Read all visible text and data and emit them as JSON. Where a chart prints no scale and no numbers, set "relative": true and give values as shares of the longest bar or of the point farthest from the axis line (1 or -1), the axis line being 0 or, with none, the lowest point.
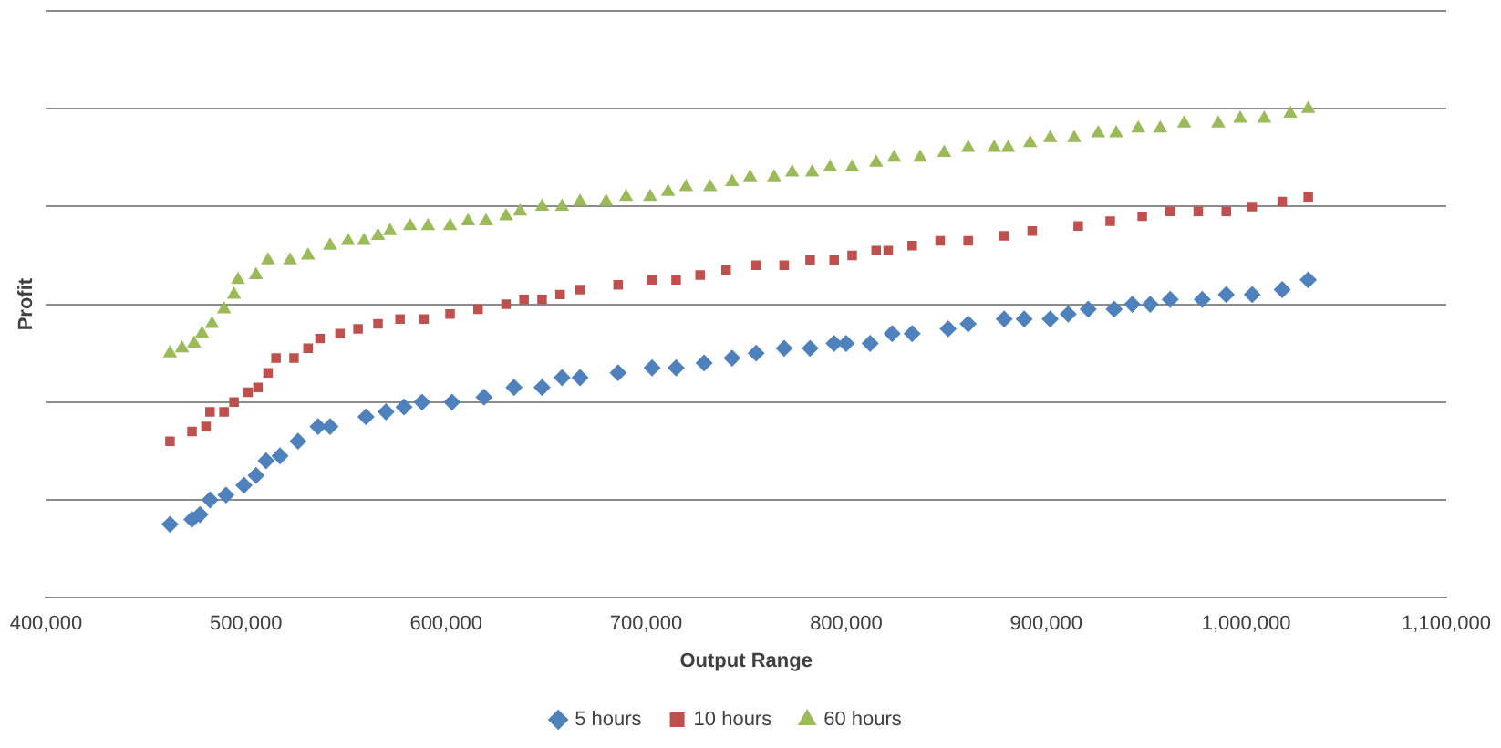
{
  "chart_data": {
    "type": "scatter",
    "relative": true,
    "xlabel": "Output Range",
    "ylabel": "Profit",
    "xlim": [
      400000,
      1100000
    ],
    "xticks": [
      {
        "value": 400000,
        "label": "400,000"
      },
      {
        "value": 500000,
        "label": "500,000"
      },
      {
        "value": 600000,
        "label": "600,000"
      },
      {
        "value": 700000,
        "label": "700,000"
      },
      {
        "value": 800000,
        "label": "800,000"
      },
      {
        "value": 900000,
        "label": "900,000"
      },
      {
        "value": 1000000,
        "label": "1,000,000"
      },
      {
        "value": 1100000,
        "label": "1,100,000"
      }
    ],
    "grid": "y",
    "legend": "bottom",
    "tick_labels": "x",
    "series": [
      {
        "name": "5 hours",
        "color": "#4f81bd",
        "marker": "diamond",
        "x": [
          462000,
          473000,
          477000,
          482000,
          490000,
          499000,
          505000,
          510000,
          517000,
          526000,
          536000,
          542000,
          560000,
          570000,
          579000,
          588000,
          603000,
          619000,
          634000,
          648000,
          658000,
          667000,
          686000,
          703000,
          715000,
          729000,
          743000,
          755000,
          769000,
          782000,
          794000,
          800000,
          812000,
          823000,
          833000,
          851000,
          861000,
          879000,
          889000,
          902000,
          911000,
          921000,
          934000,
          943000,
          952000,
          962000,
          978000,
          990000,
          1003000,
          1018000,
          1031000
        ],
        "values": [
          0.15,
          0.16,
          0.17,
          0.2,
          0.21,
          0.23,
          0.25,
          0.28,
          0.29,
          0.32,
          0.35,
          0.35,
          0.37,
          0.38,
          0.39,
          0.4,
          0.4,
          0.41,
          0.43,
          0.43,
          0.45,
          0.45,
          0.46,
          0.47,
          0.47,
          0.48,
          0.49,
          0.5,
          0.51,
          0.51,
          0.52,
          0.52,
          0.52,
          0.54,
          0.54,
          0.55,
          0.56,
          0.57,
          0.57,
          0.57,
          0.58,
          0.59,
          0.59,
          0.6,
          0.6,
          0.61,
          0.61,
          0.62,
          0.62,
          0.63,
          0.65
        ]
      },
      {
        "name": "10 hours",
        "color": "#c0504d",
        "marker": "square",
        "x": [
          462000,
          473000,
          480000,
          482000,
          489000,
          494000,
          501000,
          506000,
          511000,
          515000,
          524000,
          531000,
          537000,
          547000,
          556000,
          566000,
          577000,
          589000,
          602000,
          616000,
          630000,
          639000,
          648000,
          657000,
          667000,
          686000,
          703000,
          715000,
          727000,
          740000,
          755000,
          769000,
          782000,
          794000,
          803000,
          815000,
          821000,
          833000,
          847000,
          861000,
          879000,
          893000,
          916000,
          932000,
          948000,
          962000,
          976000,
          990000,
          1003000,
          1018000,
          1031000
        ],
        "values": [
          0.32,
          0.34,
          0.35,
          0.38,
          0.38,
          0.4,
          0.42,
          0.43,
          0.46,
          0.49,
          0.49,
          0.51,
          0.53,
          0.54,
          0.55,
          0.56,
          0.57,
          0.57,
          0.58,
          0.59,
          0.6,
          0.61,
          0.61,
          0.62,
          0.63,
          0.64,
          0.65,
          0.65,
          0.66,
          0.67,
          0.68,
          0.68,
          0.69,
          0.69,
          0.7,
          0.71,
          0.71,
          0.72,
          0.73,
          0.73,
          0.74,
          0.75,
          0.76,
          0.77,
          0.78,
          0.79,
          0.79,
          0.79,
          0.8,
          0.81,
          0.82
        ]
      },
      {
        "name": "60 hours",
        "color": "#9bbb59",
        "marker": "triangle",
        "x": [
          462000,
          468000,
          474000,
          478000,
          483000,
          489000,
          494000,
          496000,
          505000,
          511000,
          522000,
          531000,
          542000,
          551000,
          559000,
          566000,
          572000,
          582000,
          591000,
          602000,
          611000,
          620000,
          630000,
          637000,
          648000,
          658000,
          667000,
          680000,
          690000,
          702000,
          711000,
          720000,
          732000,
          743000,
          752000,
          764000,
          773000,
          783000,
          792000,
          803000,
          815000,
          824000,
          837000,
          849000,
          861000,
          874000,
          881000,
          892000,
          902000,
          914000,
          926000,
          935000,
          946000,
          957000,
          969000,
          986000,
          997000,
          1009000,
          1022000,
          1031000
        ],
        "values": [
          0.5,
          0.51,
          0.52,
          0.54,
          0.56,
          0.59,
          0.62,
          0.65,
          0.66,
          0.69,
          0.69,
          0.7,
          0.72,
          0.73,
          0.73,
          0.74,
          0.75,
          0.76,
          0.76,
          0.76,
          0.77,
          0.77,
          0.78,
          0.79,
          0.8,
          0.8,
          0.81,
          0.81,
          0.82,
          0.82,
          0.83,
          0.84,
          0.84,
          0.85,
          0.86,
          0.86,
          0.87,
          0.87,
          0.88,
          0.88,
          0.89,
          0.9,
          0.9,
          0.91,
          0.92,
          0.92,
          0.92,
          0.93,
          0.94,
          0.94,
          0.95,
          0.95,
          0.96,
          0.96,
          0.97,
          0.97,
          0.98,
          0.98,
          0.99,
          1
        ]
      }
    ]
  }
}
